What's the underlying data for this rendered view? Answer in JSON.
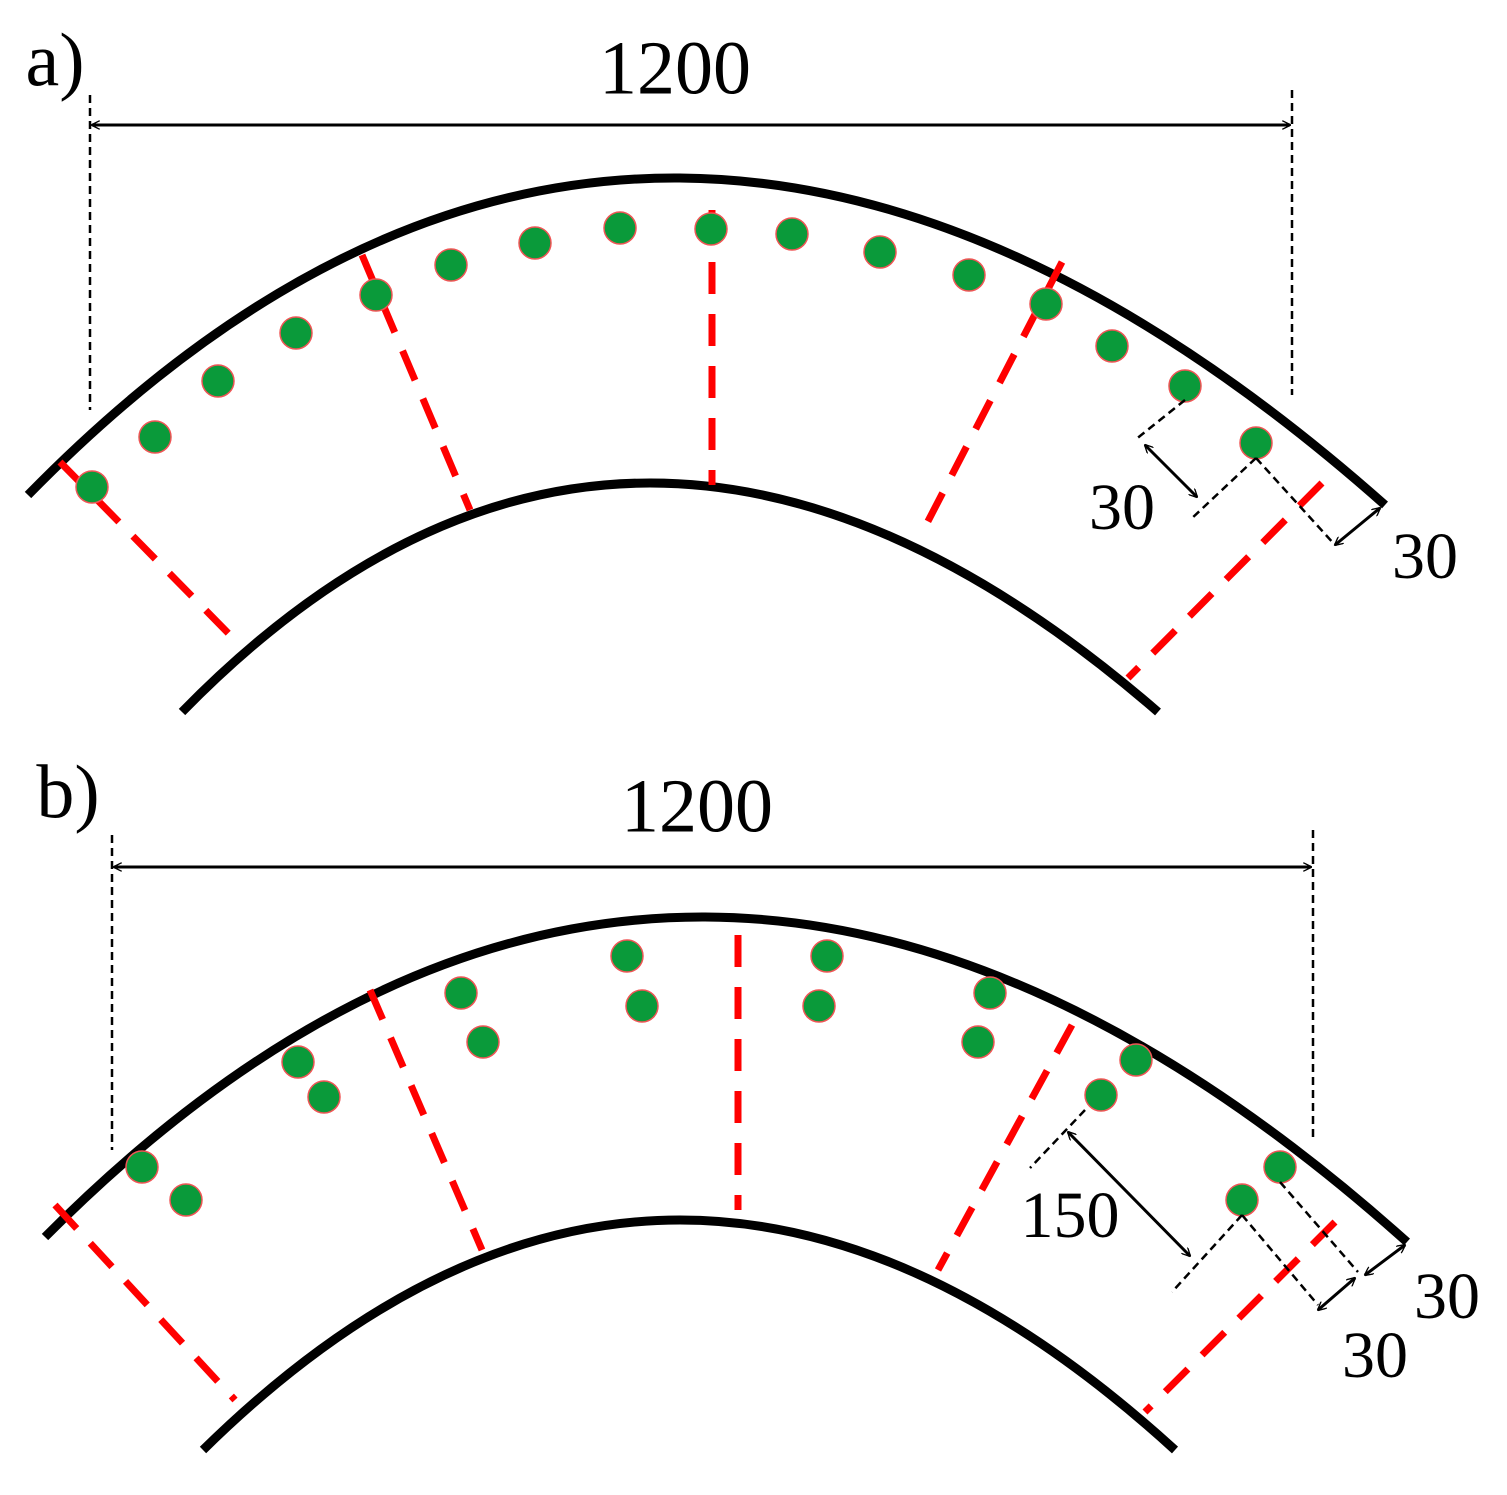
{
  "panel_a": {
    "label": "a)",
    "span": "1200",
    "dims": [
      "30",
      "30"
    ]
  },
  "panel_b": {
    "label": "b)",
    "span": "1200",
    "dims": [
      "150",
      "30",
      "30"
    ]
  }
}
